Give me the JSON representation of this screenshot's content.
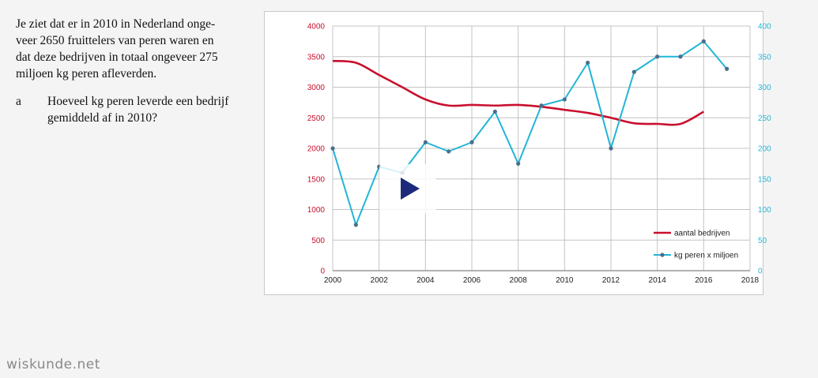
{
  "text": {
    "paragraph": "Je ziet dat er in 2010 in Nederland onge-\nveer 2650 fruittelers van peren waren en\ndat deze bedrijven in totaal ongeveer 275\nmiljoen kg peren afleverden.",
    "question_letter": "a",
    "question": "Hoeveel kg peren leverde een bedrijf\ngemiddeld af in 2010?"
  },
  "logo": "wiskunde.net",
  "player": {
    "icon": "play-icon"
  },
  "colors": {
    "red": "#c8102e",
    "cyan": "#22b5d6",
    "marker": "#4a6f8a"
  },
  "chart_data": {
    "type": "line",
    "title": "",
    "xlabel": "",
    "ylabel": "",
    "xlim": [
      2000,
      2018
    ],
    "x_ticks": [
      2000,
      2002,
      2004,
      2006,
      2008,
      2010,
      2012,
      2014,
      2016,
      2018
    ],
    "ylim_left": [
      0,
      4000
    ],
    "y_ticks_left": [
      0,
      500,
      1000,
      1500,
      2000,
      2500,
      3000,
      3500,
      4000
    ],
    "ylim_right": [
      0,
      400
    ],
    "y_ticks_right": [
      0,
      50,
      100,
      150,
      200,
      250,
      300,
      350,
      400
    ],
    "grid": true,
    "legend": "bottom-right",
    "series": [
      {
        "name": "aantal bedrijven",
        "axis": "left",
        "color": "#c8102e",
        "smooth": true,
        "markers": false,
        "x": [
          2000,
          2001,
          2002,
          2003,
          2004,
          2005,
          2006,
          2007,
          2008,
          2009,
          2010,
          2011,
          2012,
          2013,
          2014,
          2015,
          2016
        ],
        "values": [
          3430,
          3400,
          3200,
          3000,
          2800,
          2700,
          2710,
          2700,
          2710,
          2680,
          2630,
          2580,
          2500,
          2410,
          2400,
          2400,
          2600
        ]
      },
      {
        "name": "kg peren x miljoen",
        "axis": "right",
        "color": "#22b5d6",
        "smooth": false,
        "markers": true,
        "x": [
          2000,
          2001,
          2002,
          2003,
          2004,
          2005,
          2006,
          2007,
          2008,
          2009,
          2010,
          2011,
          2012,
          2013,
          2014,
          2015,
          2016,
          2017
        ],
        "values": [
          200,
          75,
          170,
          160,
          210,
          195,
          210,
          260,
          175,
          270,
          280,
          340,
          200,
          325,
          350,
          350,
          375,
          330
        ]
      }
    ]
  }
}
